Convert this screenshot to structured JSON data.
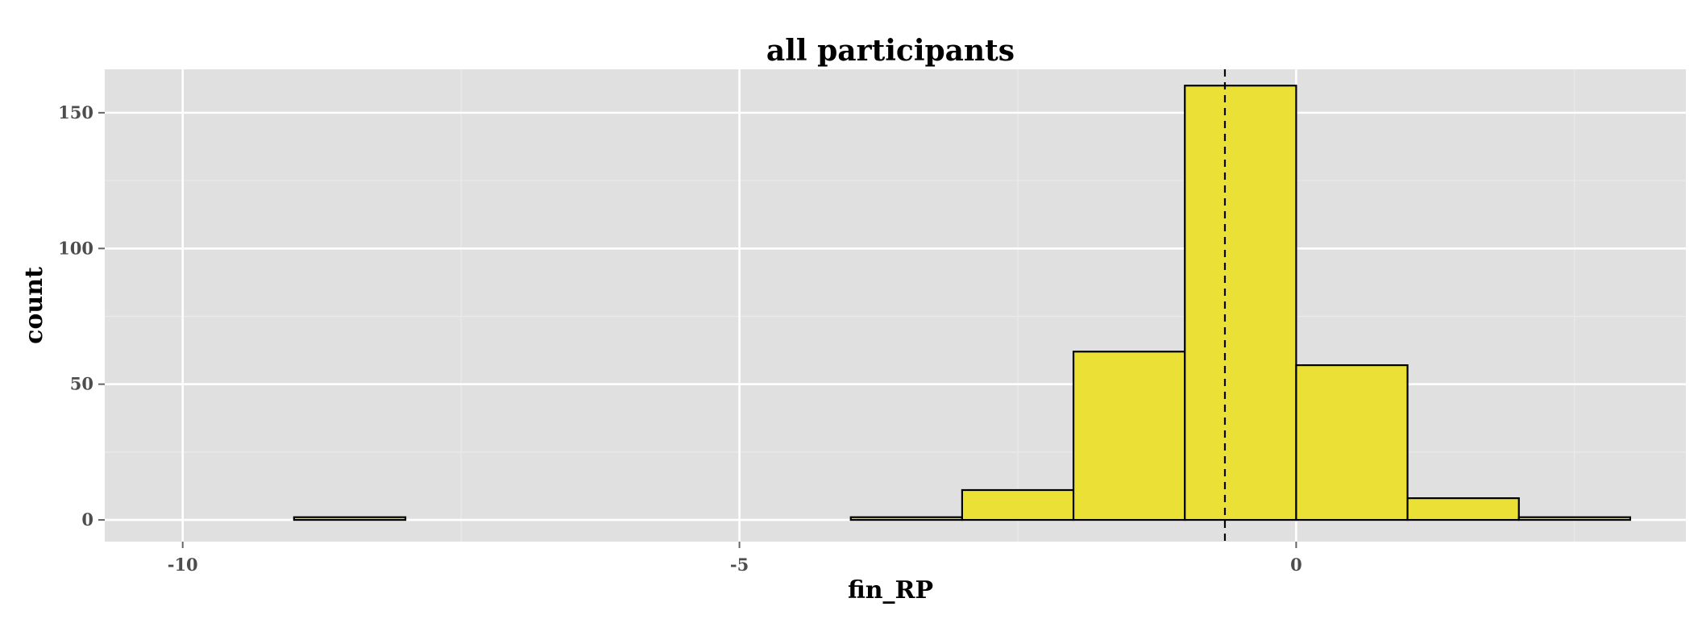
{
  "chart_data": {
    "type": "bar",
    "title": "all participants",
    "xlabel": "fin_RP",
    "ylabel": "count",
    "xlim": [
      -10.7,
      3.5
    ],
    "ylim": [
      -8,
      166
    ],
    "x_ticks": [
      -10,
      -5,
      0
    ],
    "x_tick_labels": [
      "-10",
      "-5",
      "0"
    ],
    "x_minor_ticks": [
      -7.5,
      -2.5,
      2.5
    ],
    "y_ticks": [
      0,
      50,
      100,
      150
    ],
    "y_tick_labels": [
      "0",
      "50",
      "100",
      "150"
    ],
    "y_minor_ticks": [
      25,
      75,
      125
    ],
    "bins": [
      {
        "start": -10,
        "end": -9,
        "count": 0
      },
      {
        "start": -9,
        "end": -8,
        "count": 1
      },
      {
        "start": -8,
        "end": -7,
        "count": 0
      },
      {
        "start": -7,
        "end": -6,
        "count": 0
      },
      {
        "start": -6,
        "end": -5,
        "count": 0
      },
      {
        "start": -5,
        "end": -4,
        "count": 0
      },
      {
        "start": -4,
        "end": -3,
        "count": 1
      },
      {
        "start": -3,
        "end": -2,
        "count": 11
      },
      {
        "start": -2,
        "end": -1,
        "count": 62
      },
      {
        "start": -1,
        "end": 0,
        "count": 160
      },
      {
        "start": 0,
        "end": 1,
        "count": 57
      },
      {
        "start": 1,
        "end": 2,
        "count": 8
      },
      {
        "start": 2,
        "end": 3,
        "count": 1
      },
      {
        "start": 3,
        "end": 4,
        "count": 0
      }
    ],
    "vline": {
      "x": -0.64,
      "style": "dashed"
    },
    "bar_fill": "#ebe136",
    "bar_stroke": "#000000",
    "panel_background": "#e0e0e0",
    "grid": true
  }
}
